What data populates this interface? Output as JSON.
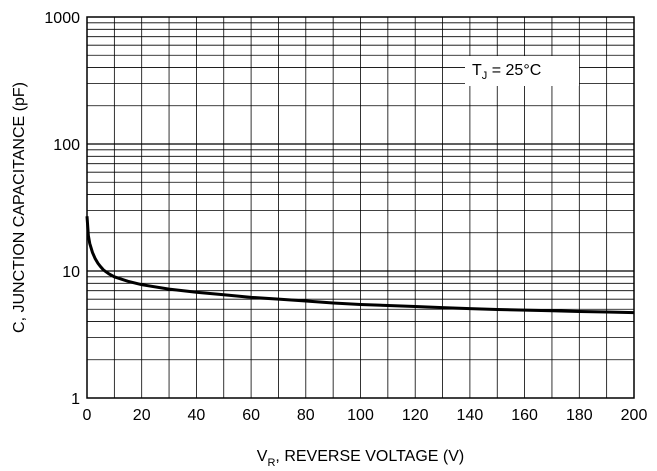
{
  "chart_data": {
    "type": "line",
    "title": "",
    "xlabel_main": "V",
    "xlabel_sub": "R",
    "xlabel_rest": ", REVERSE VOLTAGE (V)",
    "ylabel": "C, JUNCTION CAPACITANCE (pF)",
    "xlim": [
      0,
      200
    ],
    "ylim": [
      1,
      1000
    ],
    "yscale": "log",
    "grid": true,
    "x_ticks": [
      {
        "value": 0,
        "label": "0"
      },
      {
        "value": 20,
        "label": "20"
      },
      {
        "value": 40,
        "label": "40"
      },
      {
        "value": 60,
        "label": "60"
      },
      {
        "value": 80,
        "label": "80"
      },
      {
        "value": 100,
        "label": "100"
      },
      {
        "value": 120,
        "label": "120"
      },
      {
        "value": 140,
        "label": "140"
      },
      {
        "value": 160,
        "label": "160"
      },
      {
        "value": 180,
        "label": "180"
      },
      {
        "value": 200,
        "label": "200"
      }
    ],
    "y_ticks": [
      {
        "value": 1,
        "label": "1"
      },
      {
        "value": 10,
        "label": "10"
      },
      {
        "value": 100,
        "label": "100"
      },
      {
        "value": 1000,
        "label": "1000"
      }
    ],
    "annotation": {
      "main": "T",
      "sub": "J",
      "rest": " = 25°C"
    },
    "series": [
      {
        "x": [
          0,
          0.5,
          1,
          2,
          3,
          4,
          5,
          6,
          8,
          10,
          15,
          20,
          30,
          40,
          50,
          60,
          70,
          80,
          90,
          100,
          110,
          120,
          130,
          140,
          150,
          160,
          170,
          180,
          190,
          200
        ],
        "y": [
          27,
          19,
          16.5,
          14,
          12.5,
          11.5,
          10.8,
          10.2,
          9.5,
          9.0,
          8.3,
          7.8,
          7.2,
          6.8,
          6.5,
          6.2,
          6.0,
          5.8,
          5.6,
          5.45,
          5.35,
          5.25,
          5.15,
          5.05,
          4.98,
          4.92,
          4.86,
          4.8,
          4.75,
          4.7
        ]
      }
    ],
    "colors": {
      "line": "#000000",
      "grid": "#000000"
    }
  }
}
